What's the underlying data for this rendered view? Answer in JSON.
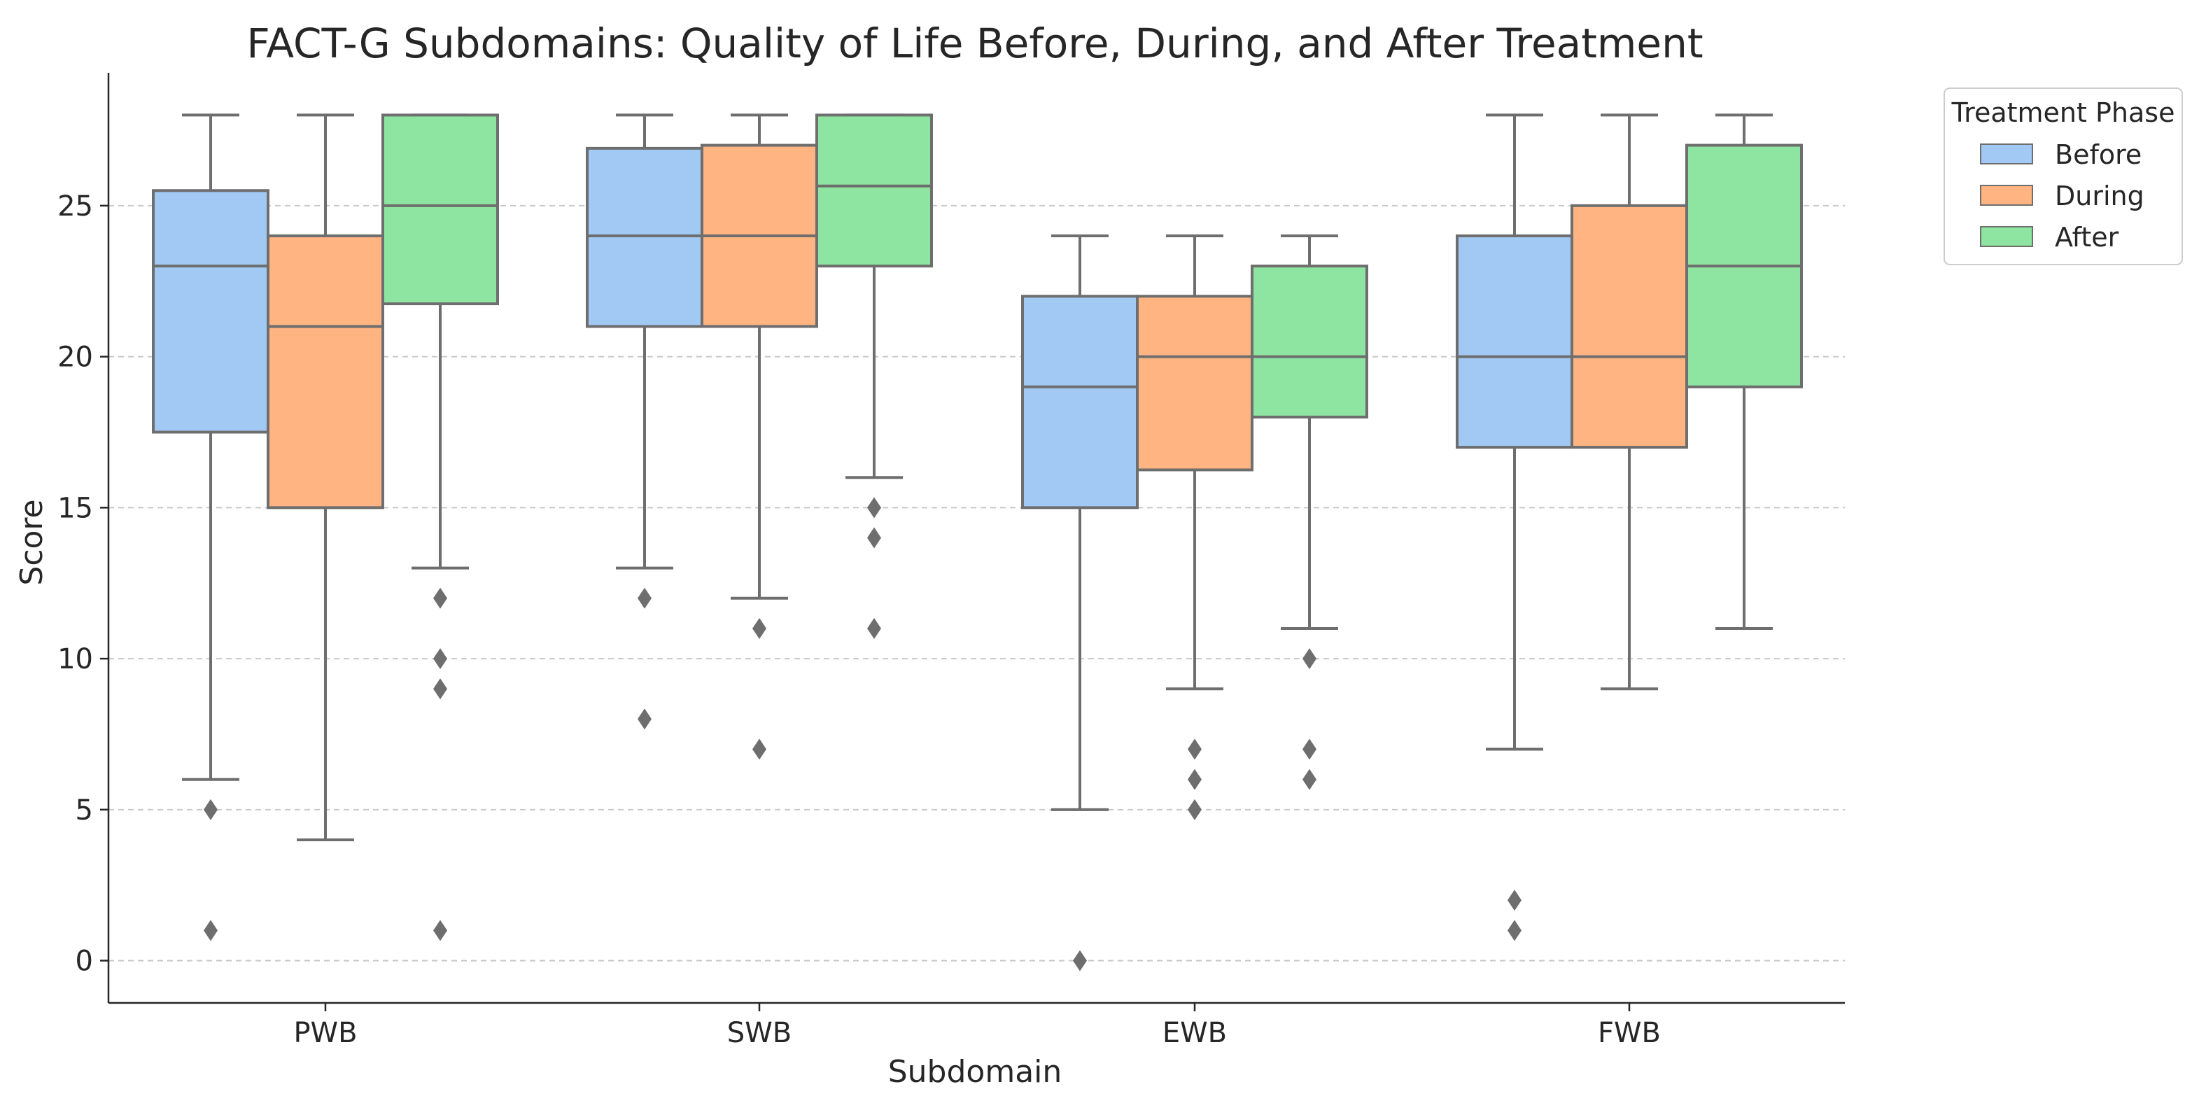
{
  "chart_data": {
    "type": "box",
    "title": "FACT-G Subdomains: Quality of Life Before, During, and After Treatment",
    "xlabel": "Subdomain",
    "ylabel": "Score",
    "categories": [
      "PWB",
      "SWB",
      "EWB",
      "FWB"
    ],
    "ylim": [
      -1.4,
      29.4
    ],
    "yticks": [
      0,
      5,
      10,
      15,
      20,
      25
    ],
    "grid": "horizontal-dashed",
    "legend": {
      "title": "Treatment Phase",
      "placement": "outside-top-right"
    },
    "series": [
      {
        "name": "Before",
        "color": "#a1c9f4",
        "boxes": [
          {
            "category": "PWB",
            "whisker_low": 6,
            "q1": 17.5,
            "median": 23,
            "q3": 25.5,
            "whisker_high": 28,
            "outliers": [
              5,
              1
            ]
          },
          {
            "category": "SWB",
            "whisker_low": 13,
            "q1": 21,
            "median": 24,
            "q3": 26.9,
            "whisker_high": 28,
            "outliers": [
              12,
              8
            ]
          },
          {
            "category": "EWB",
            "whisker_low": 5,
            "q1": 15,
            "median": 19,
            "q3": 22,
            "whisker_high": 24,
            "outliers": [
              0
            ]
          },
          {
            "category": "FWB",
            "whisker_low": 7,
            "q1": 17,
            "median": 20,
            "q3": 24,
            "whisker_high": 28,
            "outliers": [
              2,
              1
            ]
          }
        ]
      },
      {
        "name": "During",
        "color": "#ffb482",
        "boxes": [
          {
            "category": "PWB",
            "whisker_low": 4,
            "q1": 15,
            "median": 21,
            "q3": 24,
            "whisker_high": 28,
            "outliers": []
          },
          {
            "category": "SWB",
            "whisker_low": 12,
            "q1": 21,
            "median": 24,
            "q3": 27,
            "whisker_high": 28,
            "outliers": [
              11,
              7
            ]
          },
          {
            "category": "EWB",
            "whisker_low": 9,
            "q1": 16.25,
            "median": 20,
            "q3": 22,
            "whisker_high": 24,
            "outliers": [
              7,
              6,
              5
            ]
          },
          {
            "category": "FWB",
            "whisker_low": 9,
            "q1": 17,
            "median": 20,
            "q3": 25,
            "whisker_high": 28,
            "outliers": []
          }
        ]
      },
      {
        "name": "After",
        "color": "#8de5a1",
        "boxes": [
          {
            "category": "PWB",
            "whisker_low": 13,
            "q1": 21.75,
            "median": 25,
            "q3": 28,
            "whisker_high": 28,
            "outliers": [
              12,
              10,
              9,
              1
            ]
          },
          {
            "category": "SWB",
            "whisker_low": 16,
            "q1": 23,
            "median": 25.65,
            "q3": 28,
            "whisker_high": 28,
            "outliers": [
              15,
              14,
              11
            ]
          },
          {
            "category": "EWB",
            "whisker_low": 11,
            "q1": 18,
            "median": 20,
            "q3": 23,
            "whisker_high": 24,
            "outliers": [
              10,
              7,
              6
            ]
          },
          {
            "category": "FWB",
            "whisker_low": 11,
            "q1": 19,
            "median": 23,
            "q3": 27,
            "whisker_high": 28,
            "outliers": []
          }
        ]
      }
    ]
  },
  "colors": {
    "line": "#6e6e6e",
    "grid": "#c8c8c8",
    "axis": "#262626"
  }
}
